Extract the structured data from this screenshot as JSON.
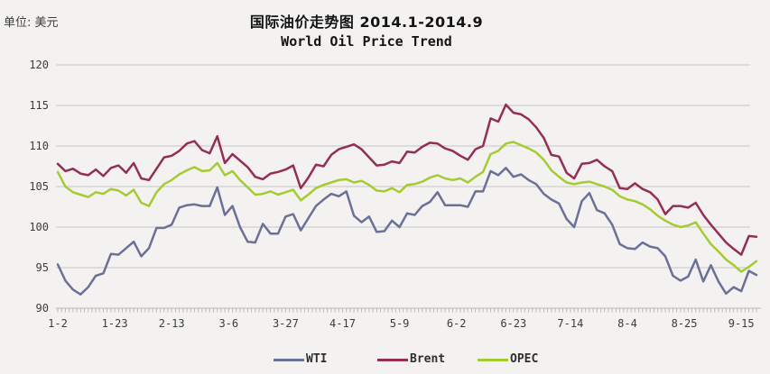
{
  "header": {
    "unit_label": "单位: 美元",
    "title": "国际油价走势图 2014.1-2014.9",
    "subtitle": "World Oil Price Trend"
  },
  "legend": {
    "items": [
      {
        "label": "WTI",
        "color": "#6b7097"
      },
      {
        "label": "Brent",
        "color": "#942e54"
      },
      {
        "label": "OPEC",
        "color": "#a5cb33"
      }
    ]
  },
  "colors": {
    "background": "#f3f2f0",
    "gridline": "#c7c7c7",
    "tick_ruler": "#b8b8b8",
    "axis_text": "#3c3c3c"
  },
  "chart_data": {
    "type": "line",
    "title": "国际油价走势图 2014.1-2014.9",
    "subtitle": "World Oil Price Trend",
    "unit": "美元",
    "xlabel": "",
    "ylabel": "",
    "ylim": [
      90,
      120
    ],
    "y_ticks": [
      90,
      95,
      100,
      105,
      110,
      115,
      120
    ],
    "grid": true,
    "legend_position": "bottom",
    "x_tick_labels": [
      "1-2",
      "1-23",
      "2-13",
      "3-6",
      "3-27",
      "4-17",
      "5-9",
      "6-2",
      "6-23",
      "7-14",
      "8-4",
      "8-25",
      "9-15"
    ],
    "x_label_day_offsets": [
      0,
      15,
      30,
      45,
      60,
      75,
      90,
      105,
      120,
      135,
      150,
      165,
      180
    ],
    "days_span": 184,
    "points_day_step": 2,
    "series": [
      {
        "name": "WTI",
        "color": "#6b7097",
        "values": [
          95.4,
          93.4,
          92.3,
          91.7,
          92.6,
          94.0,
          94.3,
          96.7,
          96.6,
          97.4,
          98.2,
          96.4,
          97.4,
          99.9,
          99.9,
          100.3,
          102.4,
          102.7,
          102.8,
          102.6,
          102.6,
          104.9,
          101.5,
          102.6,
          100.0,
          98.2,
          98.1,
          100.4,
          99.2,
          99.2,
          101.3,
          101.6,
          99.6,
          101.1,
          102.6,
          103.4,
          104.1,
          103.8,
          104.4,
          101.4,
          100.6,
          101.3,
          99.4,
          99.5,
          100.8,
          100.0,
          101.7,
          101.5,
          102.6,
          103.1,
          104.3,
          102.7,
          102.7,
          102.7,
          102.5,
          104.4,
          104.4,
          106.9,
          106.4,
          107.3,
          106.2,
          106.5,
          105.8,
          105.3,
          104.1,
          103.4,
          102.9,
          101.0,
          100.0,
          103.2,
          104.2,
          102.1,
          101.7,
          100.3,
          97.9,
          97.4,
          97.3,
          98.1,
          97.6,
          97.4,
          96.4,
          94.0,
          93.4,
          93.9,
          96.0,
          93.3,
          95.3,
          93.3,
          91.8,
          92.6,
          92.1,
          94.6,
          94.1
        ]
      },
      {
        "name": "Brent",
        "color": "#942e54",
        "values": [
          107.8,
          106.9,
          107.2,
          106.6,
          106.4,
          107.1,
          106.3,
          107.3,
          107.6,
          106.7,
          107.9,
          106.0,
          105.8,
          107.2,
          108.6,
          108.8,
          109.4,
          110.3,
          110.6,
          109.5,
          109.1,
          111.2,
          107.9,
          109.0,
          108.2,
          107.4,
          106.2,
          105.9,
          106.6,
          106.8,
          107.1,
          107.6,
          104.8,
          106.1,
          107.7,
          107.5,
          108.9,
          109.6,
          109.9,
          110.2,
          109.6,
          108.6,
          107.6,
          107.7,
          108.1,
          107.9,
          109.3,
          109.2,
          109.9,
          110.4,
          110.3,
          109.7,
          109.4,
          108.8,
          108.3,
          109.6,
          110.0,
          113.4,
          113.0,
          115.1,
          114.1,
          113.9,
          113.3,
          112.3,
          111.0,
          108.9,
          108.7,
          106.7,
          106.0,
          107.8,
          107.9,
          108.3,
          107.5,
          106.9,
          104.8,
          104.7,
          105.4,
          104.7,
          104.3,
          103.4,
          101.6,
          102.6,
          102.6,
          102.4,
          103.0,
          101.5,
          100.3,
          99.2,
          98.1,
          97.3,
          96.6,
          98.9,
          98.8
        ]
      },
      {
        "name": "OPEC",
        "color": "#a5cb33",
        "values": [
          106.8,
          105.0,
          104.3,
          104.0,
          103.7,
          104.3,
          104.1,
          104.7,
          104.5,
          103.9,
          104.6,
          103.0,
          102.6,
          104.3,
          105.3,
          105.8,
          106.5,
          107.0,
          107.4,
          106.9,
          107.0,
          107.9,
          106.4,
          106.9,
          105.8,
          104.9,
          104.0,
          104.1,
          104.4,
          104.0,
          104.3,
          104.6,
          103.3,
          104.0,
          104.8,
          105.2,
          105.5,
          105.8,
          105.9,
          105.5,
          105.7,
          105.2,
          104.5,
          104.4,
          104.8,
          104.3,
          105.2,
          105.3,
          105.6,
          106.1,
          106.4,
          106.0,
          105.8,
          106.0,
          105.5,
          106.2,
          106.8,
          109.0,
          109.4,
          110.3,
          110.5,
          110.1,
          109.7,
          109.2,
          108.3,
          107.0,
          106.2,
          105.5,
          105.3,
          105.5,
          105.6,
          105.3,
          105.0,
          104.6,
          103.8,
          103.4,
          103.2,
          102.8,
          102.2,
          101.4,
          100.8,
          100.3,
          100.0,
          100.2,
          100.6,
          99.2,
          97.9,
          97.0,
          96.0,
          95.3,
          94.5,
          95.1,
          95.8
        ]
      }
    ]
  }
}
